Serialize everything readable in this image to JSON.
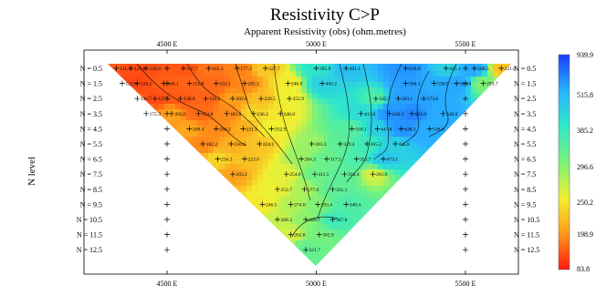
{
  "chart_data": {
    "type": "heatmap",
    "title": "Resistivity C>P",
    "subtitle": "Apparent Resistivity (obs) (ohm.metres)",
    "ylabel": "N level",
    "x_ticks": [
      "4500 E",
      "5000 E",
      "5500 E"
    ],
    "x_tick_values": [
      4500,
      5000,
      5500
    ],
    "xlim": [
      4200,
      5700
    ],
    "n_levels": [
      "N = 0.5",
      "N = 1.5",
      "N = 2.5",
      "N = 3.5",
      "N = 4.5",
      "N = 5.5",
      "N = 6.5",
      "N = 7.5",
      "N = 8.5",
      "N = 9.5",
      "N = 10.5",
      "N = 11.5",
      "N = 12.5"
    ],
    "colorbar": {
      "labels": [
        "939.9",
        "515.8",
        "385.2",
        "296.6",
        "250.2",
        "198.9",
        "83.8"
      ],
      "colors": [
        "#1a3cff",
        "#28b4ff",
        "#2fe8c8",
        "#7af27a",
        "#f2f030",
        "#ff9a1a",
        "#ff1a10"
      ]
    },
    "points": [
      {
        "x": 4330,
        "n": 0.5,
        "v": 141.3
      },
      {
        "x": 4380,
        "n": 0.5,
        "v": 129.8
      },
      {
        "x": 4430,
        "n": 0.5,
        "v": 130.0
      },
      {
        "x": 4555,
        "n": 0.5,
        "v": 137.7
      },
      {
        "x": 4640,
        "n": 0.5,
        "v": 165.1
      },
      {
        "x": 4735,
        "n": 0.5,
        "v": 177.3
      },
      {
        "x": 4830,
        "n": 0.5,
        "v": 227.7
      },
      {
        "x": 5000,
        "n": 0.5,
        "v": 395.9
      },
      {
        "x": 5100,
        "n": 0.5,
        "v": 491.1
      },
      {
        "x": 5300,
        "n": 0.5,
        "v": 630.0
      },
      {
        "x": 5435,
        "n": 0.5,
        "v": 445.1
      },
      {
        "x": 5530,
        "n": 0.5,
        "v": 560.5
      },
      {
        "x": 5620,
        "n": 0.5,
        "v": 221.0
      },
      {
        "x": 4350,
        "n": 1.5,
        "v": 122.6
      },
      {
        "x": 4400,
        "n": 1.5,
        "v": 124.2
      },
      {
        "x": 4490,
        "n": 1.5,
        "v": 146.1
      },
      {
        "x": 4575,
        "n": 1.5,
        "v": 151.8
      },
      {
        "x": 4665,
        "n": 1.5,
        "v": 155.1
      },
      {
        "x": 4760,
        "n": 1.5,
        "v": 181.2
      },
      {
        "x": 4905,
        "n": 1.5,
        "v": 246.8
      },
      {
        "x": 5020,
        "n": 1.5,
        "v": 443.2
      },
      {
        "x": 5300,
        "n": 1.5,
        "v": 594.1
      },
      {
        "x": 5395,
        "n": 1.5,
        "v": 536.9
      },
      {
        "x": 5470,
        "n": 1.5,
        "v": 563.0
      },
      {
        "x": 5560,
        "n": 1.5,
        "v": 293.7
      },
      {
        "x": 4400,
        "n": 2.5,
        "v": 148.7
      },
      {
        "x": 4460,
        "n": 2.5,
        "v": 127.5
      },
      {
        "x": 4545,
        "n": 2.5,
        "v": 138.8
      },
      {
        "x": 4630,
        "n": 2.5,
        "v": 150.2
      },
      {
        "x": 4720,
        "n": 2.5,
        "v": 202.6
      },
      {
        "x": 4815,
        "n": 2.5,
        "v": 220.5
      },
      {
        "x": 4910,
        "n": 2.5,
        "v": 252.9
      },
      {
        "x": 5200,
        "n": 2.5,
        "v": 345.7
      },
      {
        "x": 5275,
        "n": 2.5,
        "v": 583.1
      },
      {
        "x": 5360,
        "n": 2.5,
        "v": 573.6
      },
      {
        "x": 4430,
        "n": 3.5,
        "v": 175.3
      },
      {
        "x": 4515,
        "n": 3.5,
        "v": 205.6
      },
      {
        "x": 4605,
        "n": 3.5,
        "v": 154.8
      },
      {
        "x": 4700,
        "n": 3.5,
        "v": 183.0
      },
      {
        "x": 4790,
        "n": 3.5,
        "v": 236.3
      },
      {
        "x": 4880,
        "n": 3.5,
        "v": 246.0
      },
      {
        "x": 5150,
        "n": 3.5,
        "v": 413.0
      },
      {
        "x": 5245,
        "n": 3.5,
        "v": 636.3
      },
      {
        "x": 5320,
        "n": 3.5,
        "v": 683.8
      },
      {
        "x": 5425,
        "n": 3.5,
        "v": 540.0
      },
      {
        "x": 4575,
        "n": 4.5,
        "v": 208.4
      },
      {
        "x": 4665,
        "n": 4.5,
        "v": 184.2
      },
      {
        "x": 4755,
        "n": 4.5,
        "v": 211.5
      },
      {
        "x": 4850,
        "n": 4.5,
        "v": 252.9
      },
      {
        "x": 5120,
        "n": 4.5,
        "v": 339.1
      },
      {
        "x": 5205,
        "n": 4.5,
        "v": 447.4
      },
      {
        "x": 5285,
        "n": 4.5,
        "v": 638.1
      },
      {
        "x": 5380,
        "n": 4.5,
        "v": 538.6
      },
      {
        "x": 4620,
        "n": 5.5,
        "v": 182.2
      },
      {
        "x": 4715,
        "n": 5.5,
        "v": 210.6
      },
      {
        "x": 4810,
        "n": 5.5,
        "v": 224.1
      },
      {
        "x": 4985,
        "n": 5.5,
        "v": 283.3
      },
      {
        "x": 5080,
        "n": 5.5,
        "v": 329.4
      },
      {
        "x": 5170,
        "n": 5.5,
        "v": 365.2
      },
      {
        "x": 5265,
        "n": 5.5,
        "v": 445.8
      },
      {
        "x": 4670,
        "n": 6.5,
        "v": 234.3
      },
      {
        "x": 4760,
        "n": 6.5,
        "v": 223.0
      },
      {
        "x": 4950,
        "n": 6.5,
        "v": 284.3
      },
      {
        "x": 5035,
        "n": 6.5,
        "v": 317.5
      },
      {
        "x": 5135,
        "n": 6.5,
        "v": 353.7
      },
      {
        "x": 5225,
        "n": 6.5,
        "v": 473.1
      },
      {
        "x": 4720,
        "n": 7.5,
        "v": 203.2
      },
      {
        "x": 4900,
        "n": 7.5,
        "v": 254.8
      },
      {
        "x": 4995,
        "n": 7.5,
        "v": 311.5
      },
      {
        "x": 5095,
        "n": 7.5,
        "v": 334.4
      },
      {
        "x": 5190,
        "n": 7.5,
        "v": 261.6
      },
      {
        "x": 4870,
        "n": 8.5,
        "v": 253.7
      },
      {
        "x": 4960,
        "n": 8.5,
        "v": 277.0
      },
      {
        "x": 5055,
        "n": 8.5,
        "v": 331.1
      },
      {
        "x": 4820,
        "n": 9.5,
        "v": 246.5
      },
      {
        "x": 4915,
        "n": 9.5,
        "v": 274.0
      },
      {
        "x": 5005,
        "n": 9.5,
        "v": 293.4
      },
      {
        "x": 5100,
        "n": 9.5,
        "v": 348.4
      },
      {
        "x": 4870,
        "n": 10.5,
        "v": 268.3
      },
      {
        "x": 4965,
        "n": 10.5,
        "v": 289.7
      },
      {
        "x": 5055,
        "n": 10.5,
        "v": 367.8
      },
      {
        "x": 4915,
        "n": 11.5,
        "v": 262.8
      },
      {
        "x": 5010,
        "n": 11.5,
        "v": 302.9
      },
      {
        "x": 4965,
        "n": 12.5,
        "v": 321.7
      }
    ]
  }
}
